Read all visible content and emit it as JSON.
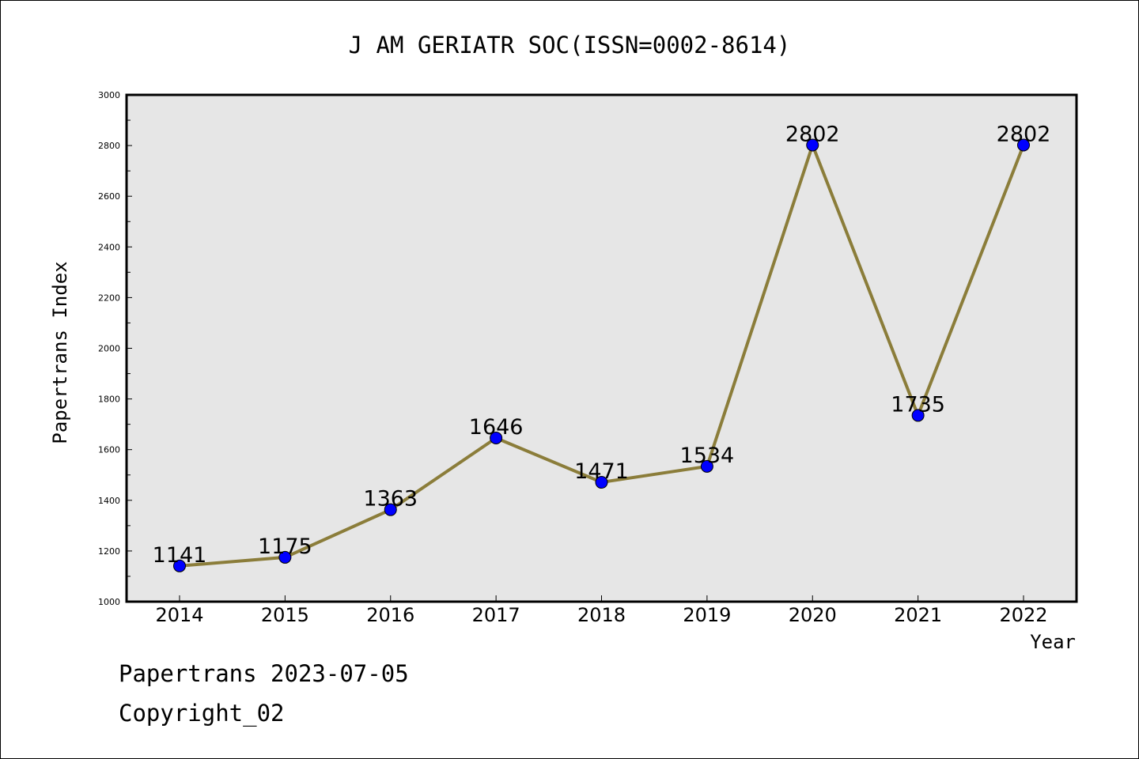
{
  "chart_data": {
    "type": "line",
    "title": "J AM GERIATR SOC(ISSN=0002-8614)",
    "xlabel": "Year",
    "ylabel": "Papertrans Index",
    "categories": [
      "2014",
      "2015",
      "2016",
      "2017",
      "2018",
      "2019",
      "2020",
      "2021",
      "2022"
    ],
    "series": [
      {
        "values": [
          1141,
          1175,
          1363,
          1646,
          1471,
          1534,
          2802,
          1735,
          2802
        ]
      }
    ],
    "data_labels": [
      "1141",
      "1175",
      "1363",
      "1646",
      "1471",
      "1534",
      "2802",
      "1735",
      "2802"
    ],
    "ylim": [
      1000,
      3000
    ],
    "yticks": [
      "1000",
      "1200",
      "1400",
      "1600",
      "1800",
      "2000",
      "2200",
      "2400",
      "2600",
      "2800",
      "3000"
    ],
    "grid": false,
    "colors": {
      "plot_background": "#e6e6e6",
      "line": "#8b7d3a",
      "marker": "#0000ff"
    }
  },
  "footer": {
    "line1": "Papertrans 2023-07-05",
    "line2": "Copyright_02"
  }
}
